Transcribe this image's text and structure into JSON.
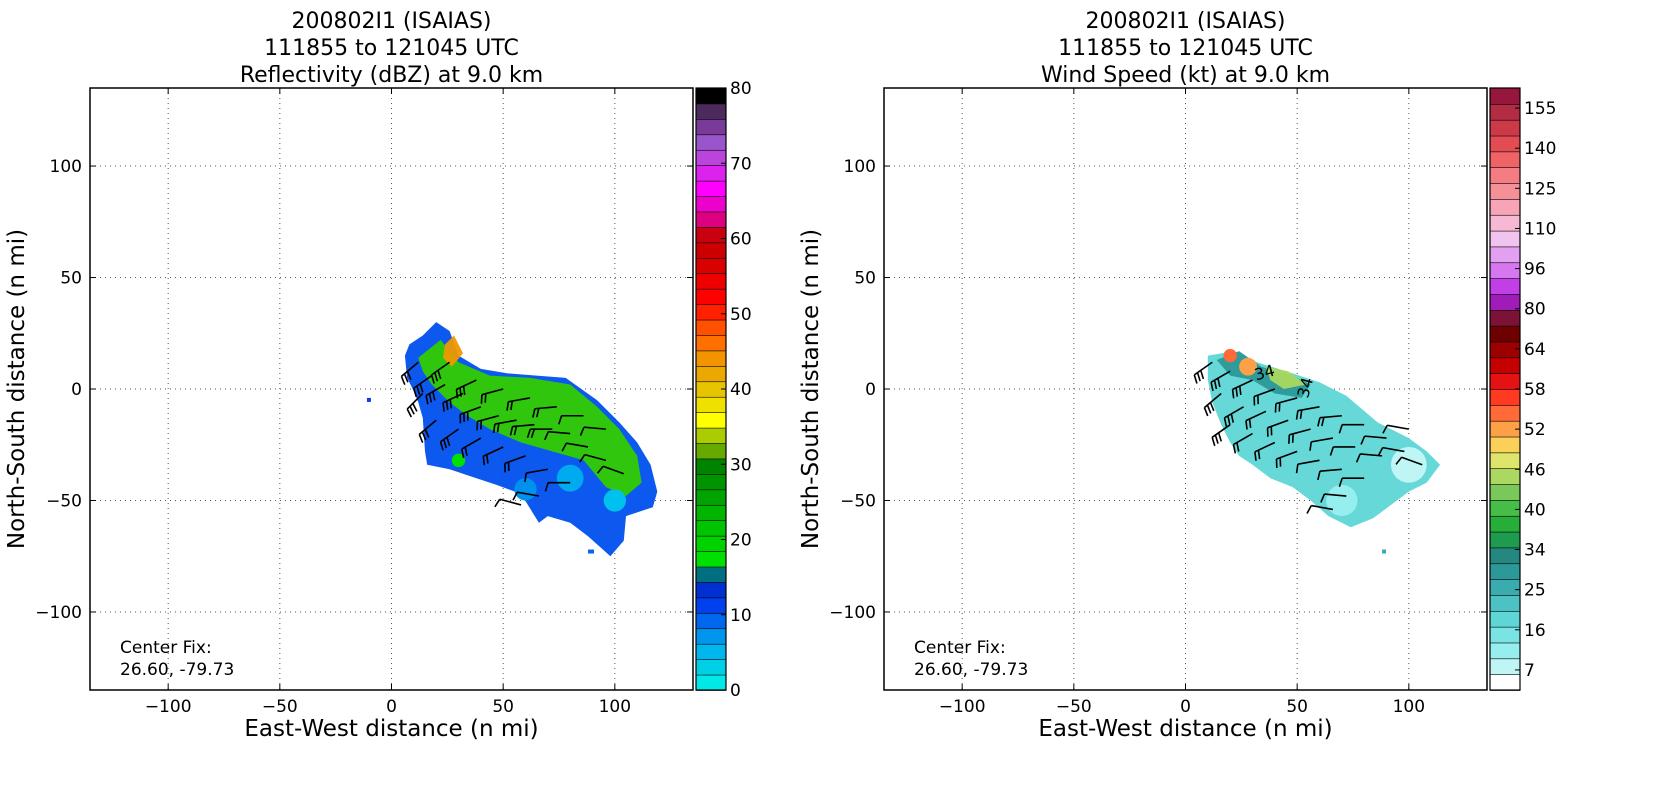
{
  "chart_data": [
    {
      "type": "heatmap",
      "title": [
        "200802I1 (ISAIAS)",
        "111855 to 121045 UTC",
        "Reflectivity (dBZ) at 9.0 km"
      ],
      "xlabel": "East-West distance (n mi)",
      "ylabel": "North-South distance (n mi)",
      "xlim": [
        -135,
        135
      ],
      "ylim": [
        -135,
        135
      ],
      "xticks": [
        -100,
        -50,
        0,
        50,
        100
      ],
      "yticks": [
        -100,
        -50,
        0,
        50,
        100
      ],
      "grid": true,
      "annotation": [
        "Center Fix:",
        "26.60, -79.73"
      ],
      "colorbar": {
        "min": 0,
        "max": 80,
        "ticks": [
          0,
          10,
          20,
          30,
          40,
          50,
          60,
          70,
          80
        ],
        "colors": [
          "#00e8e8",
          "#00d0e6",
          "#00b6ee",
          "#0096ee",
          "#0068ee",
          "#0040ee",
          "#0030d2",
          "#006f82",
          "#00e000",
          "#00d200",
          "#00c400",
          "#00b400",
          "#00a400",
          "#009400",
          "#008400",
          "#66aa00",
          "#aacc00",
          "#ffff00",
          "#f0e000",
          "#e6c400",
          "#eaa800",
          "#f29400",
          "#ff7000",
          "#ff5000",
          "#ff2000",
          "#ff0000",
          "#ee0000",
          "#d80000",
          "#cc0000",
          "#c80010",
          "#dd0080",
          "#ee00cc",
          "#ff00ff",
          "#dd22ee",
          "#bb44dd",
          "#9955cc",
          "#7a3a99",
          "#4c2a5c",
          "#000000"
        ]
      },
      "series": [
        {
          "kind": "echo_region",
          "points": [
            [
              8,
              20
            ],
            [
              14,
              24
            ],
            [
              20,
              30
            ],
            [
              26,
              26
            ],
            [
              30,
              15
            ],
            [
              40,
              9
            ],
            [
              52,
              7
            ],
            [
              65,
              6
            ],
            [
              78,
              5
            ],
            [
              92,
              -5
            ],
            [
              102,
              -15
            ],
            [
              110,
              -24
            ],
            [
              116,
              -34
            ],
            [
              119,
              -46
            ],
            [
              117,
              -53
            ],
            [
              105,
              -57
            ],
            [
              104,
              -68
            ],
            [
              98,
              -75
            ],
            [
              88,
              -66
            ],
            [
              80,
              -60
            ],
            [
              70,
              -57
            ],
            [
              66,
              -60
            ],
            [
              58,
              -47
            ],
            [
              47,
              -43
            ],
            [
              35,
              -39
            ],
            [
              26,
              -36
            ],
            [
              16,
              -34
            ],
            [
              15,
              -28
            ],
            [
              14,
              -13
            ],
            [
              12,
              -6
            ],
            [
              10,
              -1
            ],
            [
              7,
              5
            ],
            [
              6,
              15
            ]
          ]
        },
        {
          "kind": "echo_region",
          "points": [
            [
              12,
              14
            ],
            [
              22,
              22
            ],
            [
              30,
              12
            ],
            [
              44,
              6
            ],
            [
              62,
              5
            ],
            [
              80,
              2
            ],
            [
              92,
              -8
            ],
            [
              102,
              -18
            ],
            [
              110,
              -30
            ],
            [
              112,
              -42
            ],
            [
              105,
              -48
            ],
            [
              96,
              -44
            ],
            [
              86,
              -32
            ],
            [
              72,
              -28
            ],
            [
              58,
              -24
            ],
            [
              44,
              -18
            ],
            [
              34,
              -12
            ],
            [
              26,
              -6
            ],
            [
              18,
              2
            ],
            [
              14,
              8
            ]
          ]
        },
        {
          "kind": "echo_region",
          "points": [
            [
              24,
              20
            ],
            [
              28,
              24
            ],
            [
              32,
              16
            ],
            [
              27,
              10
            ],
            [
              23,
              14
            ]
          ]
        }
      ]
    },
    {
      "type": "heatmap",
      "title": [
        "200802I1 (ISAIAS)",
        "111855 to 121045 UTC",
        "Wind Speed (kt) at 9.0 km"
      ],
      "xlabel": "East-West distance (n mi)",
      "ylabel": "North-South distance (n mi)",
      "xlim": [
        -135,
        135
      ],
      "ylim": [
        -135,
        135
      ],
      "xticks": [
        -100,
        -50,
        0,
        50,
        100
      ],
      "yticks": [
        -100,
        -50,
        0,
        50,
        100
      ],
      "grid": true,
      "annotation": [
        "Center Fix:",
        "26.60, -79.73"
      ],
      "colorbar": {
        "ticks": [
          7,
          16,
          25,
          34,
          40,
          46,
          52,
          58,
          64,
          80,
          96,
          110,
          125,
          140,
          155
        ],
        "colors": [
          "#ffffff",
          "#bff5f5",
          "#96eeee",
          "#7ae4e4",
          "#5fd6d6",
          "#4cc2c4",
          "#3aacb0",
          "#2c9898",
          "#248880",
          "#1f9b50",
          "#27ad3a",
          "#46bd46",
          "#7ac85a",
          "#aad860",
          "#dde66a",
          "#fbd058",
          "#fda048",
          "#ff6a38",
          "#ff3a20",
          "#e41212",
          "#c40000",
          "#9c0000",
          "#6e0000",
          "#7c1236",
          "#a01cb8",
          "#c23ee6",
          "#d676f0",
          "#e4a0f0",
          "#f0c4ee",
          "#f6b8d2",
          "#f7a4b6",
          "#f69098",
          "#f67c84",
          "#ef6266",
          "#e24c52",
          "#cc3a48",
          "#b42c44",
          "#96163c"
        ]
      },
      "series": [
        {
          "kind": "speed_region",
          "points": [
            [
              10,
              15
            ],
            [
              22,
              17
            ],
            [
              32,
              12
            ],
            [
              48,
              7
            ],
            [
              60,
              3
            ],
            [
              72,
              -3
            ],
            [
              86,
              -15
            ],
            [
              100,
              -22
            ],
            [
              108,
              -28
            ],
            [
              114,
              -34
            ],
            [
              108,
              -42
            ],
            [
              100,
              -46
            ],
            [
              92,
              -52
            ],
            [
              84,
              -58
            ],
            [
              74,
              -62
            ],
            [
              64,
              -57
            ],
            [
              56,
              -50
            ],
            [
              48,
              -44
            ],
            [
              38,
              -40
            ],
            [
              30,
              -34
            ],
            [
              24,
              -30
            ],
            [
              20,
              -24
            ],
            [
              16,
              -16
            ],
            [
              12,
              -6
            ],
            [
              10,
              4
            ]
          ]
        },
        {
          "kind": "speed_region",
          "points": [
            [
              14,
              13
            ],
            [
              24,
              17
            ],
            [
              34,
              10
            ],
            [
              48,
              6
            ],
            [
              56,
              2
            ],
            [
              52,
              -4
            ],
            [
              40,
              -2
            ],
            [
              30,
              4
            ],
            [
              20,
              6
            ]
          ]
        },
        {
          "kind": "speed_region",
          "points": [
            [
              36,
              10
            ],
            [
              46,
              8
            ],
            [
              54,
              2
            ],
            [
              44,
              0
            ],
            [
              38,
              4
            ]
          ]
        }
      ],
      "contour_labels": [
        "34",
        "34"
      ]
    }
  ]
}
